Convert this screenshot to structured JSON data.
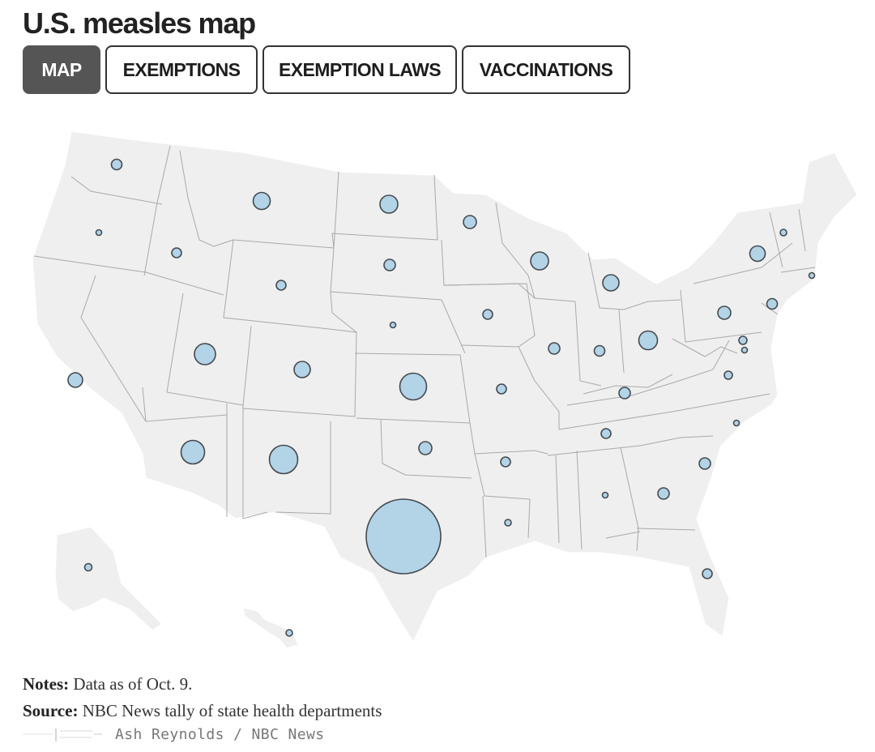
{
  "page": {
    "title": "U.S. measles map"
  },
  "tabs": [
    {
      "label": "MAP",
      "active": true
    },
    {
      "label": "EXEMPTIONS",
      "active": false
    },
    {
      "label": "EXEMPTION LAWS",
      "active": false
    },
    {
      "label": "VACCINATIONS",
      "active": false
    }
  ],
  "map": {
    "land_color": "#efefef",
    "border_color": "#a9a9a9",
    "bubble_fill": "#b3d3e6",
    "bubble_stroke": "#444a50",
    "bubble_size": "relative measles case count per state",
    "states_with_bubbles": [
      "WA",
      "OR",
      "ID",
      "MT",
      "WY",
      "ND",
      "SD",
      "NE",
      "MN",
      "WI",
      "IA",
      "MI",
      "IL",
      "IN",
      "OH",
      "PA",
      "NY",
      "VT",
      "NJ",
      "MD",
      "DC",
      "CT",
      "MO",
      "KS",
      "CO",
      "UT",
      "CA",
      "AZ",
      "NM",
      "TX",
      "OK",
      "AR",
      "LA",
      "KY",
      "TN",
      "AL",
      "GA",
      "SC",
      "NC",
      "VA",
      "FL",
      "AK",
      "HI"
    ],
    "relative_case_levels": {
      "TX": 1.0,
      "KS": 0.26,
      "NM": 0.22,
      "AZ": 0.19,
      "UT": 0.17,
      "OH": 0.15,
      "WI": 0.14,
      "ND": 0.13,
      "MT": 0.13,
      "MI": 0.12,
      "NY": 0.11,
      "CO": 0.1,
      "CA": 0.1,
      "PA": 0.09,
      "OK": 0.09,
      "GA": 0.08,
      "FL": 0.07,
      "SC": 0.07,
      "MN": 0.07,
      "IL": 0.07,
      "SD": 0.07,
      "WA": 0.07,
      "NJ": 0.07,
      "IA": 0.06,
      "IN": 0.06,
      "KY": 0.06,
      "MO": 0.06,
      "ID": 0.06,
      "ID2": 0.06,
      "AR": 0.06,
      "VA": 0.05,
      "TN": 0.05,
      "WY": 0.05,
      "AK": 0.04,
      "MD": 0.04,
      "HI": 0.04,
      "LA": 0.03,
      "OR": 0.03,
      "NE": 0.03,
      "NC": 0.03,
      "AL": 0.03,
      "VT": 0.03,
      "CT": 0.03,
      "DC": 0.03
    }
  },
  "notes": {
    "notes_label": "Notes:",
    "notes_text": "Data as of Oct. 9.",
    "source_label": "Source:",
    "source_text": "NBC News tally of state health departments"
  },
  "credit": {
    "text": "Ash Reynolds / NBC News"
  }
}
